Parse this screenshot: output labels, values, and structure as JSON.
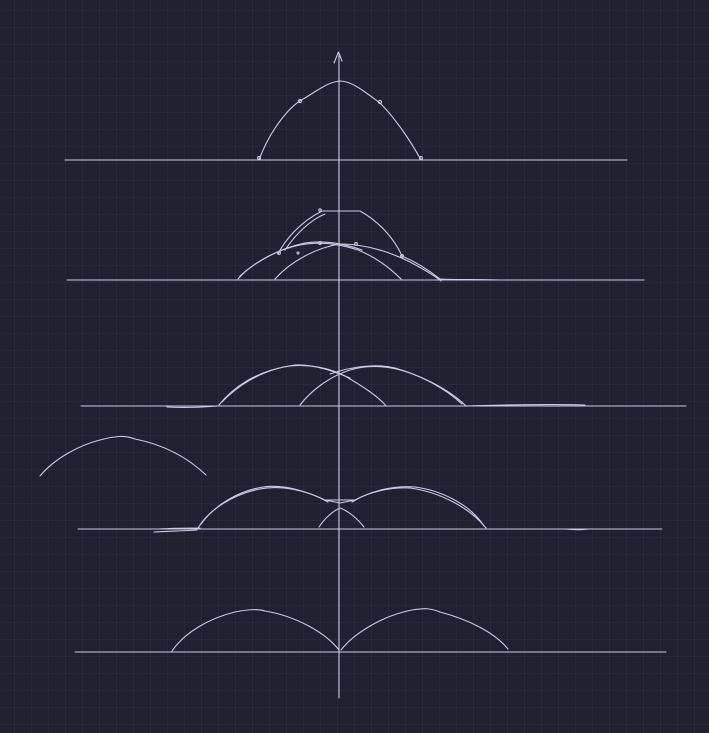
{
  "colors": {
    "background": "#20202e",
    "grid": "#34344a",
    "stroke": "#c8cce6",
    "stroke_faint": "#9ea3c0"
  },
  "canvas": {
    "grid": "on",
    "description_elements": [
      "vertical-axis-arrow",
      "baseline-1",
      "baseline-2",
      "baseline-3",
      "baseline-4",
      "baseline-5",
      "stray-arc"
    ]
  }
}
